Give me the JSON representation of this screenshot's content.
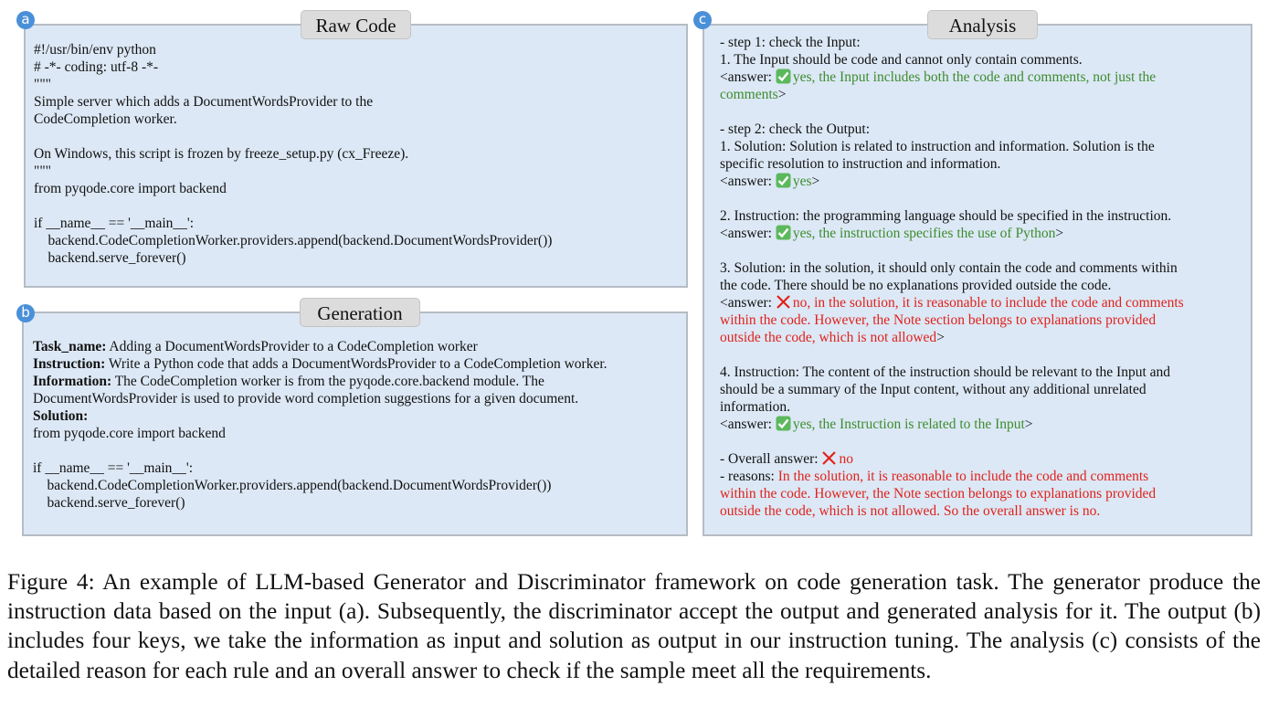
{
  "panels": [
    {
      "badge": "a",
      "title": "Raw Code",
      "paragraphs": [
        [
          [
            {
              "text": "#!/usr/bin/env python"
            }
          ],
          [
            {
              "text": "# -*- coding: utf-8 -*-"
            }
          ],
          [
            {
              "text": "\"\"\""
            }
          ],
          [
            {
              "text": "Simple server which adds a DocumentWordsProvider to the"
            }
          ],
          [
            {
              "text": "CodeCompletion worker."
            }
          ]
        ],
        [
          [
            {
              "text": "On Windows, this script is frozen by freeze_setup.py (cx_Freeze)."
            }
          ],
          [
            {
              "text": "\"\"\""
            }
          ],
          [
            {
              "text": "from pyqode.core import backend"
            }
          ]
        ],
        [
          [
            {
              "text": "if __name__ == '__main__':"
            }
          ],
          [
            {
              "text": "    backend.CodeCompletionWorker.providers.append(backend.DocumentWordsProvider())"
            }
          ],
          [
            {
              "text": "    backend.serve_forever()"
            }
          ]
        ]
      ]
    },
    {
      "badge": "b",
      "title": "Generation",
      "paragraphs": [
        [
          [
            {
              "text": "Task_name:",
              "bold": true
            },
            {
              "text": " Adding a DocumentWordsProvider to a CodeCompletion worker"
            }
          ],
          [
            {
              "text": "Instruction:",
              "bold": true
            },
            {
              "text": " Write a Python code that adds a DocumentWordsProvider to a CodeCompletion worker."
            }
          ],
          [
            {
              "text": "Information:",
              "bold": true
            },
            {
              "text": " The CodeCompletion worker is from the pyqode.core.backend module. The"
            }
          ],
          [
            {
              "text": "DocumentWordsProvider is used to provide word completion suggestions for a given document."
            }
          ],
          [
            {
              "text": "Solution:",
              "bold": true
            }
          ],
          [
            {
              "text": "from pyqode.core import backend"
            }
          ]
        ],
        [
          [
            {
              "text": "if __name__ == '__main__':"
            }
          ],
          [
            {
              "text": "    backend.CodeCompletionWorker.providers.append(backend.DocumentWordsProvider())"
            }
          ],
          [
            {
              "text": "    backend.serve_forever()"
            }
          ]
        ]
      ]
    },
    {
      "badge": "c",
      "title": "Analysis",
      "paragraphs": [
        [
          [
            {
              "text": "- step 1: check the Input:"
            }
          ],
          [
            {
              "text": "1. The Input should be code and cannot only contain comments."
            }
          ],
          [
            {
              "text": "<answer: "
            },
            {
              "icon": "check"
            },
            {
              "text": "yes, the Input includes both the code and comments, not just the",
              "color": "green"
            }
          ],
          [
            {
              "text": "comments",
              "color": "green"
            },
            {
              "text": ">"
            }
          ]
        ],
        [
          [
            {
              "text": "- step 2: check the Output:"
            }
          ],
          [
            {
              "text": "1. Solution: Solution is related to instruction and information. Solution is the"
            }
          ],
          [
            {
              "text": "specific resolution to instruction and information."
            }
          ],
          [
            {
              "text": "<answer: "
            },
            {
              "icon": "check"
            },
            {
              "text": "yes",
              "color": "green"
            },
            {
              "text": ">"
            }
          ]
        ],
        [
          [
            {
              "text": "2. Instruction: the programming language should be specified in the instruction."
            }
          ],
          [
            {
              "text": "<answer: "
            },
            {
              "icon": "check"
            },
            {
              "text": "yes, the instruction specifies the use of Python",
              "color": "green"
            },
            {
              "text": ">"
            }
          ]
        ],
        [
          [
            {
              "text": "3. Solution: in the solution, it should only contain the code and comments within"
            }
          ],
          [
            {
              "text": "the code. There should be no explanations provided outside the code."
            }
          ],
          [
            {
              "text": "<answer: "
            },
            {
              "icon": "cross"
            },
            {
              "text": "no, in the solution, it is reasonable to include the code and comments",
              "color": "red"
            }
          ],
          [
            {
              "text": "within the code. However, the Note section belongs to explanations provided",
              "color": "red"
            }
          ],
          [
            {
              "text": "outside the code, which is not allowed",
              "color": "red"
            },
            {
              "text": ">"
            }
          ]
        ],
        [
          [
            {
              "text": "4. Instruction: The content of the instruction should be relevant to the Input and"
            }
          ],
          [
            {
              "text": "should be a summary of the Input content, without any additional unrelated"
            }
          ],
          [
            {
              "text": "information."
            }
          ],
          [
            {
              "text": "<answer: "
            },
            {
              "icon": "check"
            },
            {
              "text": "yes, the Instruction is related to the Input",
              "color": "green"
            },
            {
              "text": ">"
            }
          ]
        ],
        [
          [
            {
              "text": "- Overall answer: "
            },
            {
              "icon": "cross"
            },
            {
              "text": "no",
              "color": "red"
            }
          ],
          [
            {
              "text": "- reasons: "
            },
            {
              "text": "In the solution, it is reasonable to include the code and comments",
              "color": "red"
            }
          ],
          [
            {
              "text": "within the code. However, the Note section belongs to explanations provided",
              "color": "red"
            }
          ],
          [
            {
              "text": "outside the code, which is not allowed. So the overall answer is no.",
              "color": "red"
            }
          ]
        ]
      ]
    }
  ],
  "caption": "Figure 4: An example of LLM-based Generator and Discriminator framework on code generation task. The generator produce the instruction data based on the input (a). Subsequently, the discriminator accept the output and generated analysis for it. The output (b) includes four keys, we take the information as input and solution as output in our instruction tuning. The analysis (c) consists of the detailed reason for each rule and an overall answer to check if the sample meet all the requirements."
}
